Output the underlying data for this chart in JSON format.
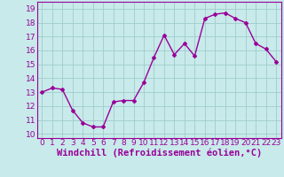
{
  "x": [
    0,
    1,
    2,
    3,
    4,
    5,
    6,
    7,
    8,
    9,
    10,
    11,
    12,
    13,
    14,
    15,
    16,
    17,
    18,
    19,
    20,
    21,
    22,
    23
  ],
  "y": [
    13.0,
    13.3,
    13.2,
    11.7,
    10.8,
    10.5,
    10.5,
    12.3,
    12.4,
    12.4,
    13.7,
    15.5,
    17.1,
    15.7,
    16.5,
    15.6,
    18.3,
    18.6,
    18.7,
    18.3,
    18.0,
    16.5,
    16.1,
    15.2
  ],
  "line_color": "#990099",
  "marker": "D",
  "marker_size": 2.0,
  "line_width": 1.0,
  "bg_color": "#c8eaea",
  "grid_color": "#a0cccc",
  "xlabel": "Windchill (Refroidissement éolien,°C)",
  "ylim": [
    9.7,
    19.5
  ],
  "xlim": [
    -0.5,
    23.5
  ],
  "yticks": [
    10,
    11,
    12,
    13,
    14,
    15,
    16,
    17,
    18,
    19
  ],
  "xticks": [
    0,
    1,
    2,
    3,
    4,
    5,
    6,
    7,
    8,
    9,
    10,
    11,
    12,
    13,
    14,
    15,
    16,
    17,
    18,
    19,
    20,
    21,
    22,
    23
  ],
  "tick_label_size": 6.5,
  "xlabel_size": 7.5
}
